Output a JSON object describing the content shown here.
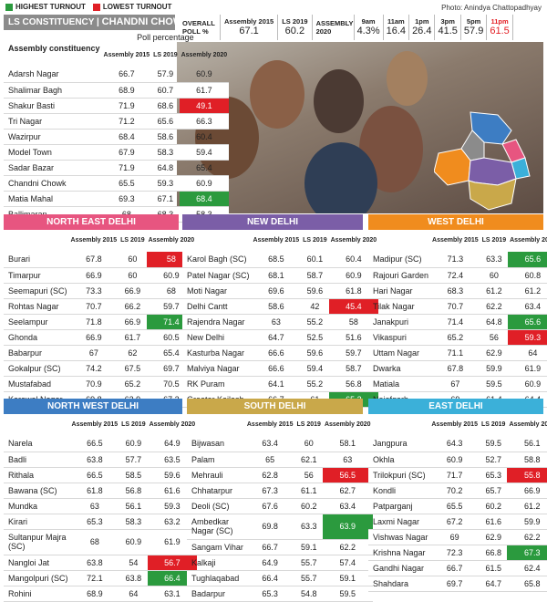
{
  "legend": {
    "highest": "HIGHEST TURNOUT",
    "lowest": "LOWEST TURNOUT",
    "highest_color": "#2b9a3e",
    "lowest_color": "#e01f26"
  },
  "credit": "Photo: Anindya Chattopadhyay",
  "ls_header": {
    "prefix": "LS CONSTITUENCY |",
    "name": "CHANDNI CHOWK"
  },
  "overall": {
    "label": "OVERALL POLL %",
    "a2015_lbl": "Assembly 2015",
    "a2015": "67.1",
    "ls2019_lbl": "LS 2019",
    "ls2019": "60.2",
    "a2020_lbl": "ASSEMBLY 2020",
    "times": [
      {
        "t": "9am",
        "v": "4.3%"
      },
      {
        "t": "11am",
        "v": "16.4"
      },
      {
        "t": "1pm",
        "v": "26.4"
      },
      {
        "t": "3pm",
        "v": "41.5"
      },
      {
        "t": "5pm",
        "v": "57.9"
      },
      {
        "t": "11pm",
        "v": "61.5"
      }
    ]
  },
  "col_headers": {
    "constituency": "Assembly constituency",
    "poll": "Poll percentage",
    "a2015": "Assembly 2015",
    "ls2019": "LS 2019",
    "a2020": "Assembly 2020"
  },
  "sections": [
    {
      "title": "CHANDNI CHOWK",
      "color": "#8b8b8b",
      "rows": [
        [
          "Adarsh Nagar",
          "66.7",
          "57.9",
          "60.9",
          ""
        ],
        [
          "Shalimar Bagh",
          "68.9",
          "60.7",
          "61.7",
          ""
        ],
        [
          "Shakur Basti",
          "71.9",
          "68.6",
          "49.1",
          "lo"
        ],
        [
          "Tri Nagar",
          "71.2",
          "65.6",
          "66.3",
          ""
        ],
        [
          "Wazirpur",
          "68.4",
          "58.6",
          "60.4",
          ""
        ],
        [
          "Model Town",
          "67.9",
          "58.3",
          "59.4",
          ""
        ],
        [
          "Sadar Bazar",
          "71.9",
          "64.8",
          "65.4",
          ""
        ],
        [
          "Chandni Chowk",
          "65.5",
          "59.3",
          "60.9",
          ""
        ],
        [
          "Matia Mahal",
          "69.3",
          "67.1",
          "68.4",
          "hi"
        ],
        [
          "Ballimaran",
          "68",
          "68.3",
          "58.3",
          ""
        ]
      ]
    },
    {
      "title": "NORTH EAST DELHI",
      "color": "#e75580",
      "rows": [
        [
          "Burari",
          "67.8",
          "60",
          "58",
          "lo"
        ],
        [
          "Timarpur",
          "66.9",
          "60",
          "60.9",
          ""
        ],
        [
          "Seemapuri (SC)",
          "73.3",
          "66.9",
          "68",
          ""
        ],
        [
          "Rohtas Nagar",
          "70.7",
          "66.2",
          "59.7",
          ""
        ],
        [
          "Seelampur",
          "71.8",
          "66.9",
          "71.4",
          "hi"
        ],
        [
          "Ghonda",
          "66.9",
          "61.7",
          "60.5",
          ""
        ],
        [
          "Babarpur",
          "67",
          "62",
          "65.4",
          ""
        ],
        [
          "Gokalpur (SC)",
          "74.2",
          "67.5",
          "69.7",
          ""
        ],
        [
          "Mustafabad",
          "70.9",
          "65.2",
          "70.5",
          ""
        ],
        [
          "Karawal Nagar",
          "69.8",
          "62.9",
          "67.2",
          ""
        ]
      ]
    },
    {
      "title": "NEW DELHI",
      "color": "#7b5ea7",
      "rows": [
        [
          "Karol Bagh (SC)",
          "68.5",
          "60.1",
          "60.4",
          ""
        ],
        [
          "Patel Nagar (SC)",
          "68.1",
          "58.7",
          "60.9",
          ""
        ],
        [
          "Moti Nagar",
          "69.6",
          "59.6",
          "61.8",
          ""
        ],
        [
          "Delhi Cantt",
          "58.6",
          "42",
          "45.4",
          "lo"
        ],
        [
          "Rajendra Nagar",
          "63",
          "55.2",
          "58",
          ""
        ],
        [
          "New Delhi",
          "64.7",
          "52.5",
          "51.6",
          ""
        ],
        [
          "Kasturba Nagar",
          "66.6",
          "59.6",
          "59.7",
          ""
        ],
        [
          "Malviya Nagar",
          "66.6",
          "59.4",
          "58.7",
          ""
        ],
        [
          "RK Puram",
          "64.1",
          "55.2",
          "56.8",
          ""
        ],
        [
          "Greater Kailash",
          "66.7",
          "61",
          "65.2",
          "hi"
        ]
      ]
    },
    {
      "title": "WEST DELHI",
      "color": "#f08c1e",
      "rows": [
        [
          "Madipur (SC)",
          "71.3",
          "63.3",
          "65.6",
          "hi"
        ],
        [
          "Rajouri Garden",
          "72.4",
          "60",
          "60.8",
          ""
        ],
        [
          "Hari Nagar",
          "68.3",
          "61.2",
          "61.2",
          ""
        ],
        [
          "Tilak Nagar",
          "70.7",
          "62.2",
          "63.4",
          ""
        ],
        [
          "Janakpuri",
          "71.4",
          "64.8",
          "65.6",
          "hi"
        ],
        [
          "Vikaspuri",
          "65.2",
          "56",
          "59.3",
          "lo"
        ],
        [
          "Uttam Nagar",
          "71.1",
          "62.9",
          "64",
          ""
        ],
        [
          "Dwarka",
          "67.8",
          "59.9",
          "61.9",
          ""
        ],
        [
          "Matiala",
          "67",
          "59.5",
          "60.9",
          ""
        ],
        [
          "Najafgarh",
          "69",
          "61.4",
          "64.4",
          ""
        ]
      ]
    },
    {
      "title": "NORTH WEST DELHI",
      "color": "#3d7dc3",
      "rows": [
        [
          "Narela",
          "66.5",
          "60.9",
          "64.9",
          ""
        ],
        [
          "Badli",
          "63.8",
          "57.7",
          "63.5",
          ""
        ],
        [
          "Rithala",
          "66.5",
          "58.5",
          "59.6",
          ""
        ],
        [
          "Bawana (SC)",
          "61.8",
          "56.8",
          "61.6",
          ""
        ],
        [
          "Mundka",
          "63",
          "56.1",
          "59.3",
          ""
        ],
        [
          "Kirari",
          "65.3",
          "58.3",
          "63.2",
          ""
        ],
        [
          "Sultanpur Majra (SC)",
          "68",
          "60.9",
          "61.9",
          ""
        ],
        [
          "Nangloi Jat",
          "63.8",
          "54",
          "56.7",
          "lo"
        ],
        [
          "Mangolpuri (SC)",
          "72.1",
          "63.8",
          "66.4",
          "hi"
        ],
        [
          "Rohini",
          "68.9",
          "64",
          "63.1",
          ""
        ]
      ]
    },
    {
      "title": "SOUTH DELHI",
      "color": "#c9a84a",
      "rows": [
        [
          "Bijwasan",
          "63.4",
          "60",
          "58.1",
          ""
        ],
        [
          "Palam",
          "65",
          "62.1",
          "63",
          ""
        ],
        [
          "Mehrauli",
          "62.8",
          "56",
          "56.5",
          "lo"
        ],
        [
          "Chhatarpur",
          "67.3",
          "61.1",
          "62.7",
          ""
        ],
        [
          "Deoli (SC)",
          "67.6",
          "60.2",
          "63.4",
          ""
        ],
        [
          "Ambedkar Nagar (SC)",
          "69.8",
          "63.3",
          "63.9",
          "hi"
        ],
        [
          "Sangam Vihar",
          "66.7",
          "59.1",
          "62.2",
          ""
        ],
        [
          "Kalkaji",
          "64.9",
          "55.7",
          "57.4",
          ""
        ],
        [
          "Tughlaqabad",
          "66.4",
          "55.7",
          "59.1",
          ""
        ],
        [
          "Badarpur",
          "65.3",
          "54.8",
          "59.5",
          ""
        ]
      ]
    },
    {
      "title": "EAST DELHI",
      "color": "#3bb0d9",
      "rows": [
        [
          "Jangpura",
          "64.3",
          "59.5",
          "56.1",
          ""
        ],
        [
          "Okhla",
          "60.9",
          "52.7",
          "58.8",
          ""
        ],
        [
          "Trilokpuri (SC)",
          "71.7",
          "65.3",
          "55.8",
          "lo"
        ],
        [
          "Kondli",
          "70.2",
          "65.7",
          "66.9",
          ""
        ],
        [
          "Patparganj",
          "65.5",
          "60.2",
          "61.2",
          ""
        ],
        [
          "Laxmi Nagar",
          "67.2",
          "61.6",
          "59.9",
          ""
        ],
        [
          "Vishwas Nagar",
          "69",
          "62.9",
          "62.2",
          ""
        ],
        [
          "Krishna Nagar",
          "72.3",
          "66.8",
          "67.3",
          "hi"
        ],
        [
          "Gandhi Nagar",
          "66.7",
          "61.5",
          "62.4",
          ""
        ],
        [
          "Shahdara",
          "69.7",
          "64.7",
          "65.8",
          ""
        ]
      ]
    }
  ]
}
